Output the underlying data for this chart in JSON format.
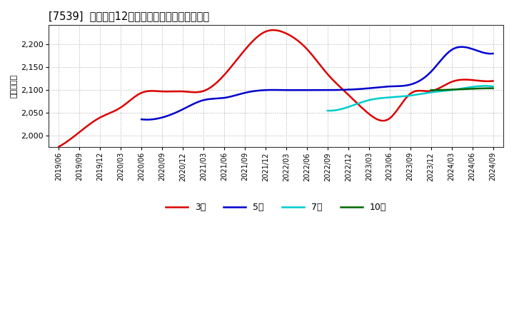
{
  "title": "[7539]  経常利益12か月移動合計の平均値の推移",
  "ylabel": "（百万円）",
  "ylim": [
    1975,
    2242
  ],
  "yticks": [
    2000,
    2050,
    2100,
    2150,
    2200
  ],
  "background_color": "#ffffff",
  "grid_color": "#999999",
  "series": {
    "3年": {
      "color": "#dd0000",
      "data": [
        [
          "2019/06",
          1976
        ],
        [
          "2019/09",
          2008
        ],
        [
          "2019/12",
          2040
        ],
        [
          "2020/03",
          2062
        ],
        [
          "2020/06",
          2094
        ],
        [
          "2020/09",
          2097
        ],
        [
          "2020/12",
          2097
        ],
        [
          "2021/03",
          2098
        ],
        [
          "2021/06",
          2133
        ],
        [
          "2021/09",
          2188
        ],
        [
          "2021/12",
          2228
        ],
        [
          "2022/03",
          2224
        ],
        [
          "2022/06",
          2190
        ],
        [
          "2022/09",
          2135
        ],
        [
          "2022/12",
          2090
        ],
        [
          "2023/03",
          2048
        ],
        [
          "2023/06",
          2038
        ],
        [
          "2023/09",
          2092
        ],
        [
          "2023/12",
          2098
        ],
        [
          "2024/03",
          2118
        ],
        [
          "2024/06",
          2122
        ],
        [
          "2024/09",
          2120
        ]
      ]
    },
    "5年": {
      "color": "#0000cc",
      "data": [
        [
          "2020/06",
          2036
        ],
        [
          "2020/09",
          2040
        ],
        [
          "2020/12",
          2058
        ],
        [
          "2021/03",
          2078
        ],
        [
          "2021/06",
          2083
        ],
        [
          "2021/09",
          2094
        ],
        [
          "2021/12",
          2100
        ],
        [
          "2022/03",
          2100
        ],
        [
          "2022/06",
          2100
        ],
        [
          "2022/09",
          2100
        ],
        [
          "2022/12",
          2101
        ],
        [
          "2023/03",
          2104
        ],
        [
          "2023/06",
          2108
        ],
        [
          "2023/09",
          2112
        ],
        [
          "2023/12",
          2140
        ],
        [
          "2024/03",
          2188
        ],
        [
          "2024/06",
          2190
        ],
        [
          "2024/09",
          2180
        ]
      ]
    },
    "7年": {
      "color": "#00cccc",
      "data": [
        [
          "2022/09",
          2055
        ],
        [
          "2022/12",
          2063
        ],
        [
          "2023/03",
          2078
        ],
        [
          "2023/06",
          2084
        ],
        [
          "2023/09",
          2088
        ],
        [
          "2023/12",
          2095
        ],
        [
          "2024/03",
          2100
        ],
        [
          "2024/06",
          2107
        ],
        [
          "2024/09",
          2108
        ]
      ]
    },
    "10年": {
      "color": "#006600",
      "data": [
        [
          "2023/12",
          2100
        ],
        [
          "2024/03",
          2101
        ],
        [
          "2024/06",
          2103
        ],
        [
          "2024/09",
          2104
        ]
      ]
    }
  },
  "xticks": [
    "2019/06",
    "2019/09",
    "2019/12",
    "2020/03",
    "2020/06",
    "2020/09",
    "2020/12",
    "2021/03",
    "2021/06",
    "2021/09",
    "2021/12",
    "2022/03",
    "2022/06",
    "2022/09",
    "2022/12",
    "2023/03",
    "2023/06",
    "2023/09",
    "2023/12",
    "2024/03",
    "2024/06",
    "2024/09"
  ]
}
